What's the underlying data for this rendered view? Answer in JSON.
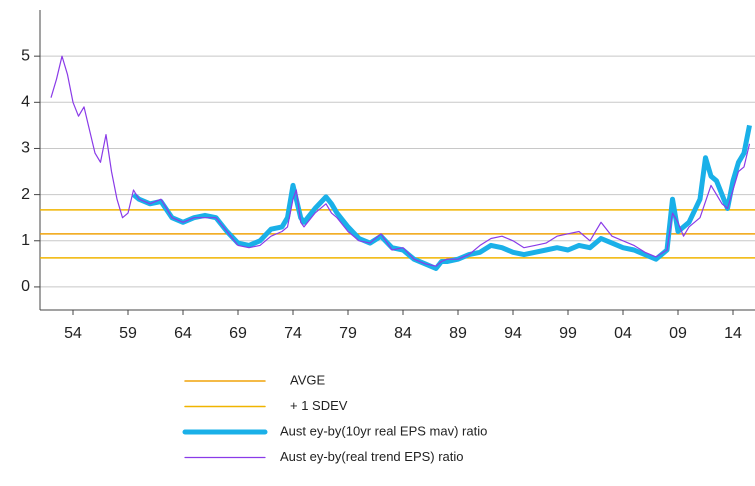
{
  "chart_data": {
    "type": "line",
    "xlim": [
      1951,
      2016
    ],
    "ylim": [
      -0.5,
      6
    ],
    "yticks": [
      0,
      1,
      2,
      3,
      4,
      5
    ],
    "xticks": [
      {
        "value": 1954,
        "label": "54"
      },
      {
        "value": 1959,
        "label": "59"
      },
      {
        "value": 1964,
        "label": "64"
      },
      {
        "value": 1969,
        "label": "69"
      },
      {
        "value": 1974,
        "label": "74"
      },
      {
        "value": 1979,
        "label": "79"
      },
      {
        "value": 1984,
        "label": "84"
      },
      {
        "value": 1989,
        "label": "89"
      },
      {
        "value": 1994,
        "label": "94"
      },
      {
        "value": 1999,
        "label": "99"
      },
      {
        "value": 2004,
        "label": "04"
      },
      {
        "value": 2009,
        "label": "09"
      },
      {
        "value": 2014,
        "label": "14"
      }
    ],
    "grid": true,
    "reference_lines": [
      {
        "name": "AVGE",
        "color": "#f0a30a",
        "values": [
          1.15
        ]
      },
      {
        "name": "+ 1 SDEV",
        "color": "#f0b400",
        "values": [
          1.67,
          0.63
        ]
      }
    ],
    "series": [
      {
        "name": "Aust ey-by(10yr real EPS mav) ratio",
        "color": "#1ab0e8",
        "width": 5,
        "x": [
          1959.5,
          1960,
          1961,
          1962,
          1963,
          1964,
          1965,
          1966,
          1967,
          1968,
          1969,
          1970,
          1971,
          1972,
          1973,
          1973.5,
          1974,
          1974.3,
          1974.7,
          1975,
          1976,
          1977,
          1977.5,
          1978,
          1979,
          1980,
          1981,
          1982,
          1983,
          1984,
          1985,
          1986,
          1987,
          1987.5,
          1988,
          1989,
          1990,
          1991,
          1992,
          1993,
          1994,
          1995,
          1996,
          1997,
          1998,
          1999,
          2000,
          2001,
          2002,
          2003,
          2004,
          2005,
          2006,
          2007,
          2008,
          2008.5,
          2009,
          2009.5,
          2010,
          2011,
          2011.5,
          2012,
          2012.5,
          2013,
          2013.5,
          2014,
          2014.5,
          2015,
          2015.5
        ],
        "values": [
          2.0,
          1.9,
          1.8,
          1.85,
          1.5,
          1.4,
          1.5,
          1.55,
          1.5,
          1.2,
          0.95,
          0.9,
          1.0,
          1.25,
          1.3,
          1.5,
          2.2,
          1.9,
          1.5,
          1.4,
          1.7,
          1.95,
          1.8,
          1.6,
          1.3,
          1.05,
          0.95,
          1.1,
          0.85,
          0.8,
          0.6,
          0.5,
          0.4,
          0.55,
          0.55,
          0.6,
          0.7,
          0.75,
          0.9,
          0.85,
          0.75,
          0.7,
          0.75,
          0.8,
          0.85,
          0.8,
          0.9,
          0.85,
          1.05,
          0.95,
          0.85,
          0.8,
          0.7,
          0.6,
          0.8,
          1.9,
          1.2,
          1.3,
          1.4,
          1.9,
          2.8,
          2.4,
          2.3,
          2.0,
          1.7,
          2.3,
          2.7,
          2.9,
          3.5
        ]
      },
      {
        "name": "Aust ey-by(real trend EPS) ratio",
        "color": "#8a3be8",
        "width": 1.2,
        "x": [
          1952,
          1952.5,
          1953,
          1953.5,
          1954,
          1954.5,
          1955,
          1955.5,
          1956,
          1956.5,
          1957,
          1957.5,
          1958,
          1958.5,
          1959,
          1959.5,
          1960,
          1961,
          1962,
          1963,
          1964,
          1965,
          1966,
          1967,
          1968,
          1969,
          1970,
          1971,
          1972,
          1973,
          1973.5,
          1974,
          1974.3,
          1974.7,
          1975,
          1976,
          1977,
          1977.5,
          1978,
          1979,
          1980,
          1981,
          1982,
          1983,
          1984,
          1985,
          1986,
          1987,
          1987.5,
          1988,
          1989,
          1990,
          1991,
          1992,
          1993,
          1994,
          1995,
          1996,
          1997,
          1998,
          1999,
          2000,
          2001,
          2002,
          2003,
          2004,
          2005,
          2006,
          2007,
          2008,
          2008.5,
          2009,
          2009.5,
          2010,
          2011,
          2012,
          2012.5,
          2013,
          2013.5,
          2014,
          2014.5,
          2015,
          2015.5
        ],
        "values": [
          4.1,
          4.5,
          5.0,
          4.6,
          4.0,
          3.7,
          3.9,
          3.4,
          2.9,
          2.7,
          3.3,
          2.5,
          1.9,
          1.5,
          1.6,
          2.1,
          1.9,
          1.8,
          1.9,
          1.5,
          1.4,
          1.5,
          1.5,
          1.5,
          1.2,
          0.9,
          0.85,
          0.9,
          1.1,
          1.2,
          1.3,
          1.9,
          2.1,
          1.4,
          1.3,
          1.6,
          1.8,
          1.6,
          1.5,
          1.2,
          1.0,
          0.95,
          1.15,
          0.8,
          0.85,
          0.6,
          0.5,
          0.45,
          0.55,
          0.6,
          0.6,
          0.7,
          0.9,
          1.05,
          1.1,
          1.0,
          0.85,
          0.9,
          0.95,
          1.1,
          1.15,
          1.2,
          1.0,
          1.4,
          1.1,
          1.0,
          0.9,
          0.75,
          0.65,
          0.8,
          1.6,
          1.4,
          1.1,
          1.3,
          1.5,
          2.2,
          2.0,
          1.8,
          1.7,
          2.1,
          2.5,
          2.6,
          3.1
        ]
      }
    ]
  }
}
